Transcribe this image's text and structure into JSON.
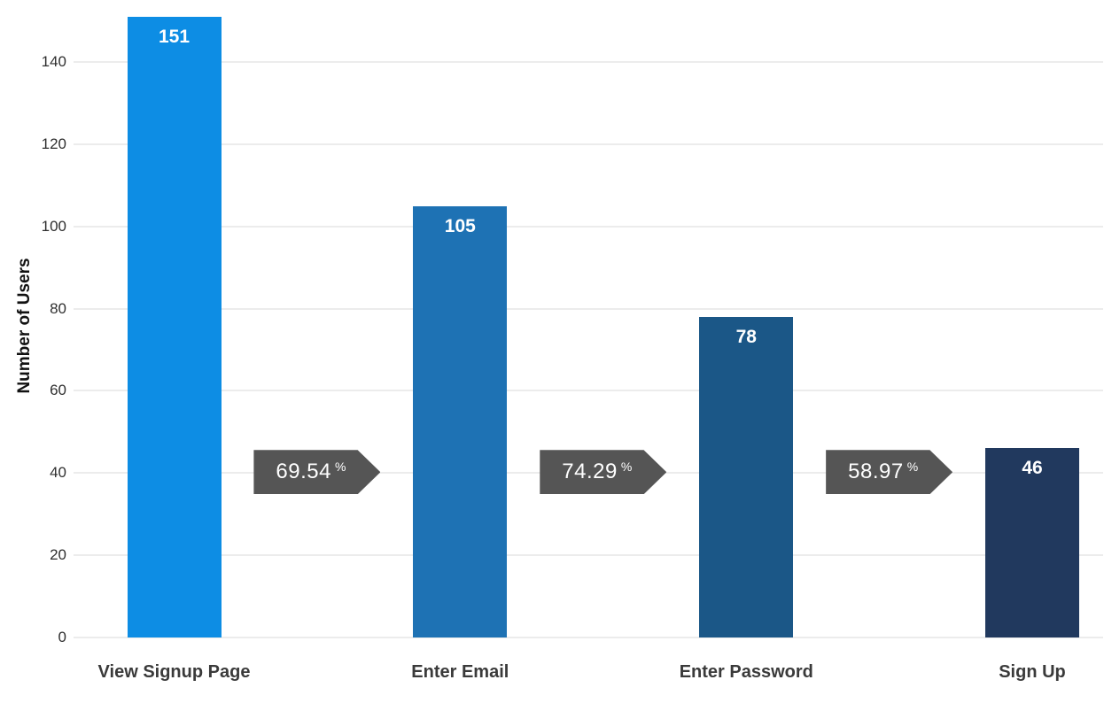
{
  "chart_data": {
    "type": "bar",
    "subtype": "funnel-conversion",
    "title": "",
    "xlabel": "",
    "ylabel": "Number of Users",
    "categories": [
      "View Signup Page",
      "Enter Email",
      "Enter Password",
      "Sign Up"
    ],
    "values": [
      151,
      105,
      78,
      46
    ],
    "bar_colors": [
      "#0d8de4",
      "#1e72b4",
      "#1b5787",
      "#21395e"
    ],
    "conversions": [
      {
        "value": "69.54",
        "unit": "%"
      },
      {
        "value": "74.29",
        "unit": "%"
      },
      {
        "value": "58.97",
        "unit": "%"
      }
    ],
    "yticks": [
      0,
      20,
      40,
      60,
      80,
      100,
      120,
      140
    ],
    "ylim": [
      0,
      155
    ],
    "grid": true,
    "legend": false,
    "arrow_color": "#555555",
    "gridline_color": "#ececec",
    "value_label_color": "#ffffff",
    "axis_text_color": "#2f2f2f",
    "category_text_color": "#3a3a3a"
  }
}
